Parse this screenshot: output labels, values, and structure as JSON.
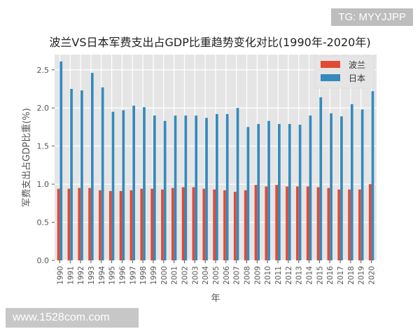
{
  "watermarks": {
    "top": "TG: MYYJJPP",
    "bottom": "www.1528com.com"
  },
  "chart_data": {
    "type": "bar",
    "title": "波兰VS日本军费支出占GDP比重趋势变化对比(1990年-2020年)",
    "xlabel": "年",
    "ylabel": "军费支出占GDP比重(%)",
    "ylim": [
      0,
      2.7
    ],
    "yticks": [
      "0.0",
      "0.5",
      "1.0",
      "1.5",
      "2.0",
      "2.5"
    ],
    "grid": true,
    "legend_position": "top-right",
    "categories": [
      "1990",
      "1991",
      "1992",
      "1993",
      "1994",
      "1995",
      "1996",
      "1997",
      "1998",
      "1999",
      "2000",
      "2001",
      "2002",
      "2003",
      "2004",
      "2005",
      "2006",
      "2007",
      "2008",
      "2009",
      "2010",
      "2011",
      "2012",
      "2013",
      "2014",
      "2015",
      "2016",
      "2017",
      "2018",
      "2019",
      "2020"
    ],
    "series": [
      {
        "name": "波兰",
        "color": "#e24a33",
        "values": [
          0.94,
          0.94,
          0.95,
          0.95,
          0.92,
          0.91,
          0.91,
          0.92,
          0.94,
          0.94,
          0.93,
          0.95,
          0.96,
          0.96,
          0.94,
          0.93,
          0.92,
          0.9,
          0.92,
          0.99,
          0.97,
          0.99,
          0.97,
          0.97,
          0.97,
          0.96,
          0.95,
          0.93,
          0.93,
          0.93,
          1.0
        ]
      },
      {
        "name": "日本",
        "color": "#348abd",
        "values": [
          2.61,
          2.25,
          2.23,
          2.46,
          2.27,
          1.95,
          1.97,
          2.03,
          2.01,
          1.9,
          1.83,
          1.9,
          1.9,
          1.9,
          1.87,
          1.92,
          1.92,
          2.0,
          1.75,
          1.79,
          1.83,
          1.79,
          1.79,
          1.78,
          1.9,
          2.14,
          1.93,
          1.89,
          2.05,
          1.98,
          2.22
        ]
      }
    ]
  }
}
